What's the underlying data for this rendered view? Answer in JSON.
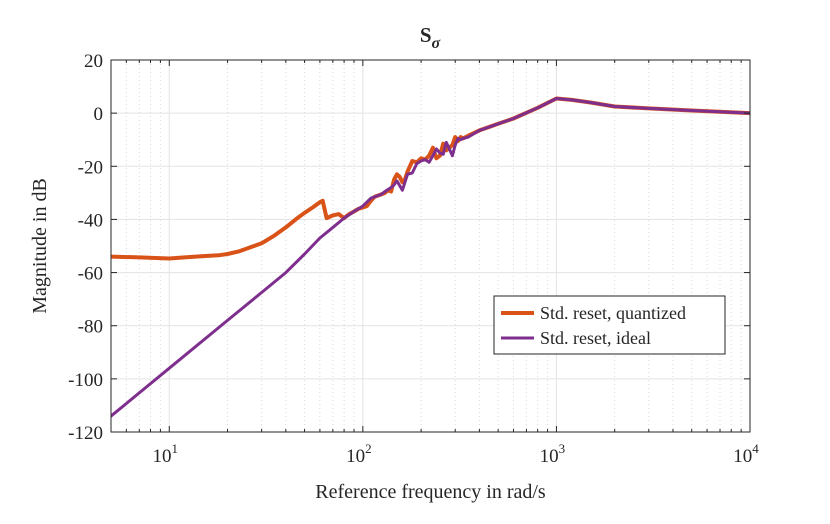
{
  "chart_data": {
    "type": "line",
    "title": "S",
    "title_subscript": "σ",
    "xlabel": "Reference frequency in rad/s",
    "ylabel": "Magnitude in dB",
    "xscale": "log",
    "xlim": [
      5,
      10000
    ],
    "ylim": [
      -120,
      20
    ],
    "yticks": [
      -120,
      -100,
      -80,
      -60,
      -40,
      -20,
      0,
      20
    ],
    "ytick_labels": [
      "-120",
      "-100",
      "-80",
      "-60",
      "-40",
      "-20",
      "0",
      "20"
    ],
    "xticks": [
      {
        "value": 10,
        "base": "10",
        "exp": "1"
      },
      {
        "value": 100,
        "base": "10",
        "exp": "2"
      },
      {
        "value": 1000,
        "base": "10",
        "exp": "3"
      },
      {
        "value": 10000,
        "base": "10",
        "exp": "4"
      }
    ],
    "grid": true,
    "legend_position": "bottom-right",
    "series": [
      {
        "name": "Std. reset, quantized",
        "color": "#D95319",
        "x": [
          5,
          7,
          10,
          12,
          15,
          18,
          20,
          23,
          25,
          30,
          35,
          40,
          45,
          50,
          55,
          60,
          62,
          65,
          70,
          75,
          80,
          85,
          90,
          95,
          100,
          105,
          110,
          115,
          120,
          125,
          130,
          135,
          140,
          145,
          150,
          155,
          160,
          165,
          170,
          175,
          180,
          190,
          200,
          210,
          220,
          230,
          240,
          250,
          260,
          270,
          280,
          290,
          300,
          310,
          320,
          330,
          350,
          400,
          500,
          600,
          800,
          1000,
          1200,
          1500,
          2000,
          3000,
          5000,
          10000
        ],
        "y": [
          -54,
          -54.3,
          -54.7,
          -54.3,
          -53.8,
          -53.5,
          -53,
          -52,
          -51,
          -49,
          -46,
          -43,
          -40,
          -37.5,
          -35.5,
          -33.5,
          -33,
          -39.5,
          -38.5,
          -38,
          -39.5,
          -38,
          -37,
          -36,
          -35.5,
          -35,
          -33,
          -31.5,
          -31,
          -30.5,
          -30,
          -29,
          -29.5,
          -25,
          -23,
          -24,
          -26,
          -25,
          -22,
          -20,
          -18,
          -18.5,
          -17,
          -17.5,
          -16,
          -13,
          -17,
          -16,
          -11.5,
          -14,
          -13,
          -12,
          -9,
          -10.5,
          -9,
          -9.5,
          -8.5,
          -6.5,
          -4,
          -2,
          2,
          5.5,
          5,
          4,
          2.5,
          1.8,
          1,
          0
        ]
      },
      {
        "name": "Std. reset, ideal",
        "color": "#7E2F8E",
        "x": [
          5,
          10,
          20,
          30,
          40,
          50,
          60,
          70,
          80,
          90,
          100,
          110,
          120,
          125,
          130,
          140,
          145,
          150,
          160,
          170,
          180,
          190,
          200,
          210,
          220,
          230,
          240,
          250,
          260,
          270,
          280,
          290,
          300,
          310,
          320,
          330,
          350,
          400,
          500,
          600,
          800,
          1000,
          1200,
          1500,
          2000,
          3000,
          5000,
          10000
        ],
        "y": [
          -114,
          -96,
          -78,
          -67.5,
          -60,
          -53,
          -47,
          -43,
          -39.5,
          -37,
          -35,
          -32,
          -31,
          -30.5,
          -29.5,
          -28,
          -27,
          -25.5,
          -29,
          -23,
          -22.5,
          -19,
          -18,
          -17.5,
          -18.5,
          -16,
          -13.5,
          -15,
          -15.5,
          -11,
          -13.5,
          -16,
          -12,
          -9.5,
          -10,
          -9.5,
          -9,
          -6.5,
          -4,
          -2,
          2,
          5.5,
          5,
          4,
          2.5,
          1.8,
          1,
          0
        ]
      }
    ]
  }
}
